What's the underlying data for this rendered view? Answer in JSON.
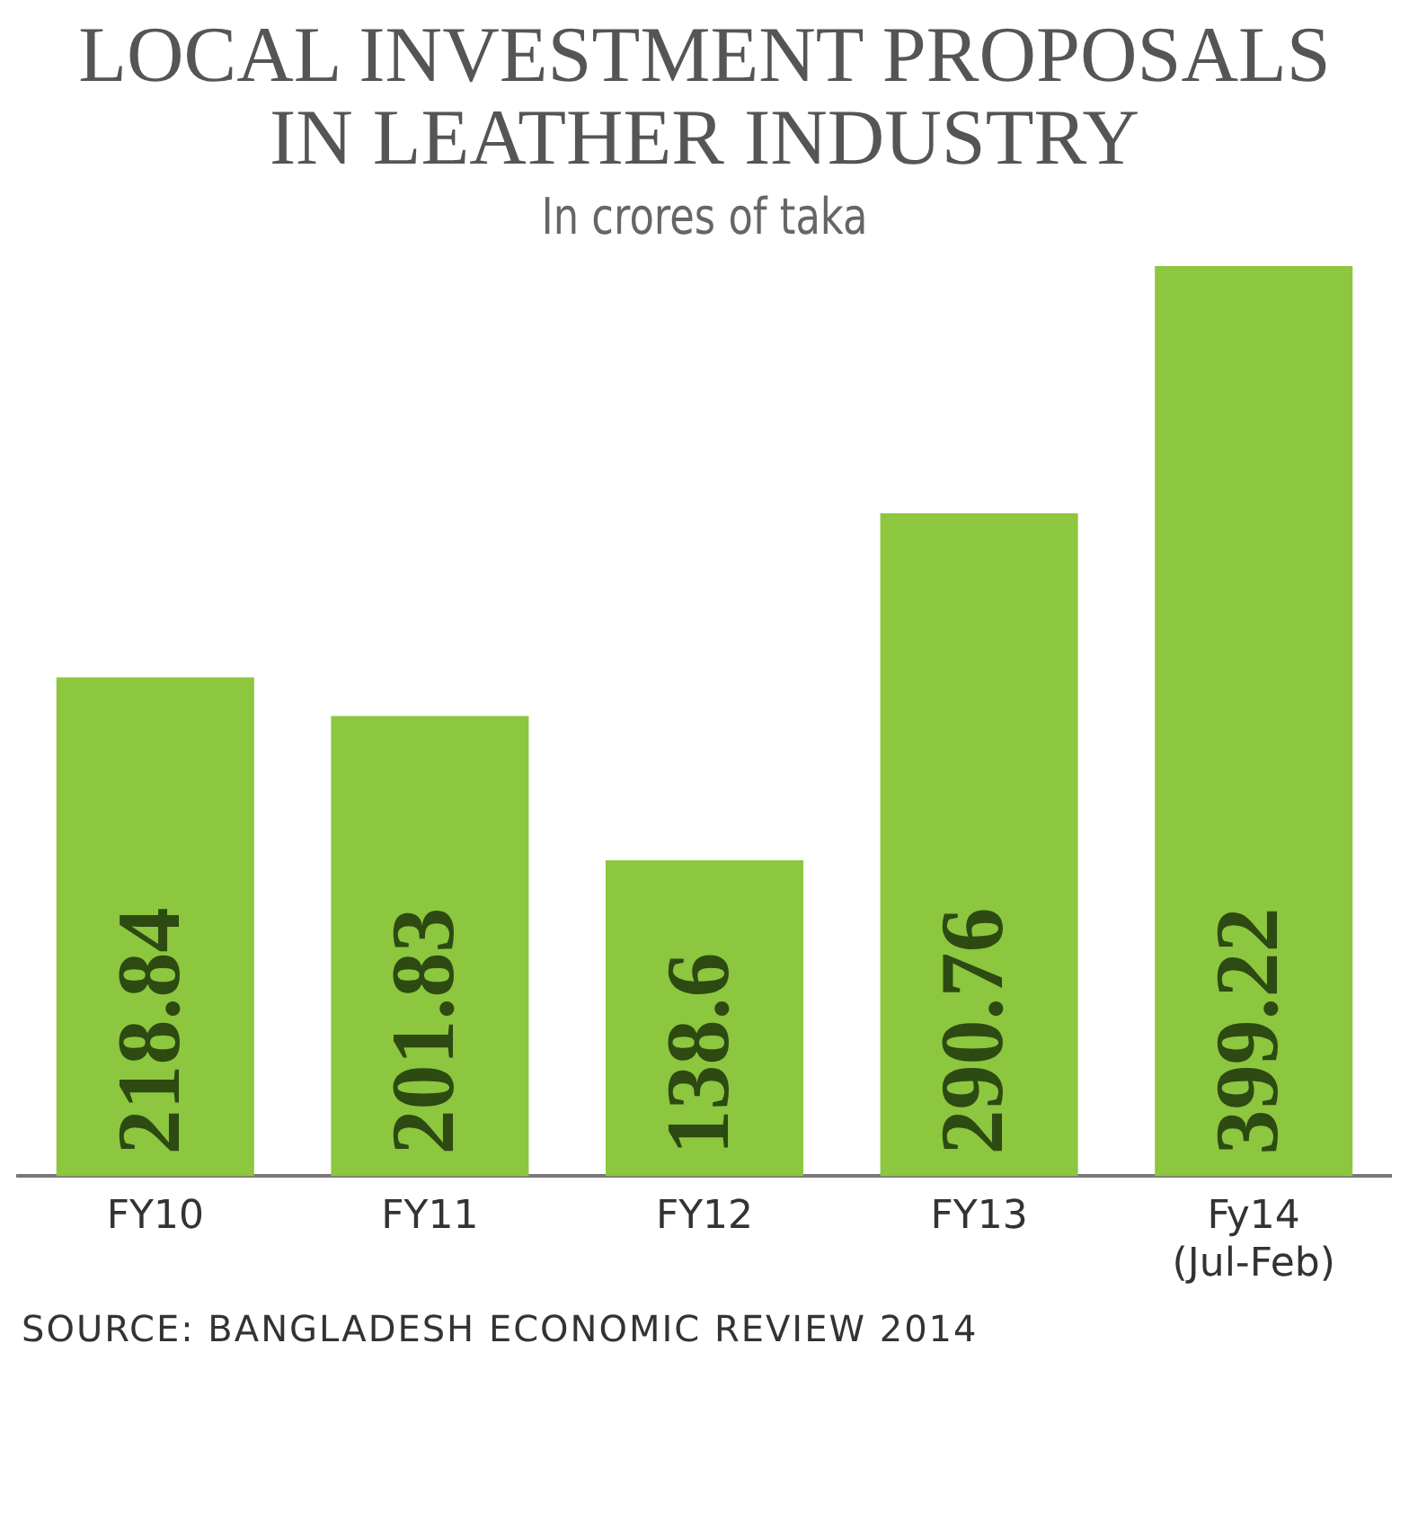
{
  "chart_data": {
    "type": "bar",
    "title": "LOCAL INVESTMENT PROPOSALS IN LEATHER INDUSTRY",
    "subtitle": "In crores of taka",
    "categories": [
      "FY10",
      "FY11",
      "FY12",
      "FY13",
      "Fy14\n(Jul-Feb)"
    ],
    "values": [
      218.84,
      201.83,
      138.6,
      290.76,
      399.22
    ],
    "color": "#8dc63f",
    "tick_labels": "x",
    "data_labels": true,
    "grid": false,
    "legend": false,
    "annotations": [
      "SOURCE: BANGLADESH ECONOMIC REVIEW 2014"
    ]
  }
}
